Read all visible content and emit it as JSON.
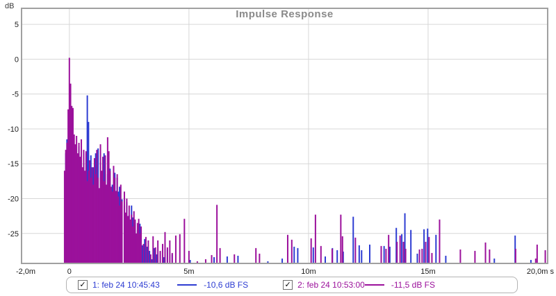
{
  "chart_data": {
    "type": "line",
    "subtype": "impulse-response-spikes",
    "title": "Impulse Response",
    "ylabel": "dB",
    "xlabel": "",
    "x_unit": "s",
    "xlim": [
      -2,
      20
    ],
    "ylim": [
      -29.3,
      7.3
    ],
    "grid": true,
    "legend_position": "bottom",
    "title_color": "#8a8a8a",
    "grid_color": "#d7d7d7",
    "border_color": "#a0a0a0",
    "x_ticks": [
      {
        "t": -2,
        "label": "-2,0m"
      },
      {
        "t": 0,
        "label": "0"
      },
      {
        "t": 5,
        "label": "5m"
      },
      {
        "t": 10,
        "label": "10m"
      },
      {
        "t": 15,
        "label": "15m"
      },
      {
        "t": 20,
        "label": "20,0m s"
      }
    ],
    "y_ticks": [
      {
        "v": 5,
        "label": "5"
      },
      {
        "v": 0,
        "label": "0"
      },
      {
        "v": -5,
        "label": "-5"
      },
      {
        "v": -10,
        "label": "-10"
      },
      {
        "v": -15,
        "label": "-15"
      },
      {
        "v": -20,
        "label": "-20"
      },
      {
        "v": -25,
        "label": "-25"
      }
    ],
    "series": [
      {
        "label": "1: feb 24 10:45:43",
        "peak_label": "-10,6 dB FS",
        "color": "#2d3cd2",
        "checked": true,
        "check_glyph": "✓",
        "spikes": [
          [
            -0.15,
            -13.5
          ],
          [
            -0.1,
            -11.5
          ],
          [
            0,
            -10.8
          ],
          [
            0.05,
            -9.5
          ],
          [
            0.1,
            -12
          ],
          [
            0.2,
            -13
          ],
          [
            0.3,
            -14
          ],
          [
            0.4,
            -12.5
          ],
          [
            0.5,
            -14.5
          ],
          [
            0.6,
            -15
          ],
          [
            0.7,
            -13.5
          ],
          [
            0.75,
            -5.2
          ],
          [
            0.8,
            -9
          ],
          [
            0.9,
            -13.8
          ],
          [
            1,
            -15.5
          ],
          [
            1.1,
            -13.5
          ],
          [
            1.2,
            -12.8
          ],
          [
            1.3,
            -14.8
          ],
          [
            1.4,
            -15.4
          ],
          [
            1.45,
            -13.5
          ],
          [
            1.5,
            -16
          ],
          [
            1.6,
            -16.5
          ],
          [
            1.65,
            -15.6
          ],
          [
            1.7,
            -15.7
          ],
          [
            1.8,
            -18
          ],
          [
            1.9,
            -16.3
          ],
          [
            2,
            -17
          ],
          [
            2.05,
            -19
          ],
          [
            2.1,
            -18.3
          ],
          [
            2.2,
            -20.1
          ],
          [
            2.3,
            -21
          ],
          [
            2.4,
            -20.5
          ],
          [
            2.5,
            -22.4
          ],
          [
            2.6,
            -21
          ],
          [
            2.65,
            -22.7
          ],
          [
            2.75,
            -23.2
          ],
          [
            2.85,
            -24.5
          ],
          [
            2.95,
            -23.6
          ],
          [
            3.05,
            -26.7
          ],
          [
            3.15,
            -25.8
          ],
          [
            3.25,
            -26.9
          ],
          [
            3.35,
            -27.5
          ],
          [
            3.45,
            -28.7
          ],
          [
            3.55,
            -27.1
          ],
          [
            3.65,
            -28
          ],
          [
            3.8,
            -27.6
          ],
          [
            3.95,
            -28.4
          ],
          [
            4.1,
            -27.3
          ],
          [
            4.3,
            -28
          ],
          [
            5.05,
            -28.8
          ],
          [
            6.05,
            -28.4
          ],
          [
            6.6,
            -28.3
          ],
          [
            7.05,
            -28.2
          ],
          [
            8.3,
            -29
          ],
          [
            8.9,
            -28.6
          ],
          [
            9.4,
            -26.9
          ],
          [
            9.55,
            -27.1
          ],
          [
            10.2,
            -27
          ],
          [
            10.7,
            -28.3
          ],
          [
            11,
            -27.1
          ],
          [
            11.2,
            -27.4
          ],
          [
            11.45,
            -27.6
          ],
          [
            11.87,
            -22.6
          ],
          [
            12.12,
            -26.7
          ],
          [
            12.22,
            -27.4
          ],
          [
            12.56,
            -26.6
          ],
          [
            13.16,
            -26.8
          ],
          [
            13.4,
            -26.9
          ],
          [
            13.67,
            -24.2
          ],
          [
            13.9,
            -25.1
          ],
          [
            14.03,
            -22.1
          ],
          [
            14.28,
            -24.5
          ],
          [
            14.55,
            -27.9
          ],
          [
            14.83,
            -24.4
          ],
          [
            14.98,
            -24.3
          ],
          [
            15.33,
            -25.2
          ],
          [
            15.74,
            -28.2
          ],
          [
            17.77,
            -28.6
          ],
          [
            18.64,
            -25.3
          ],
          [
            19.3,
            -28.8
          ]
        ]
      },
      {
        "label": "2: feb 24 10:53:00",
        "peak_label": "-11,5 dB FS",
        "color": "#9b109b",
        "checked": true,
        "check_glyph": "✓",
        "spikes": [
          [
            -0.2,
            -16
          ],
          [
            -0.15,
            -13
          ],
          [
            -0.1,
            -12
          ],
          [
            -0.05,
            -7.2
          ],
          [
            0,
            0.2
          ],
          [
            0.05,
            -3.5
          ],
          [
            0.1,
            -6.7
          ],
          [
            0.15,
            -7
          ],
          [
            0.2,
            -10.8
          ],
          [
            0.25,
            -12.2
          ],
          [
            0.3,
            -11
          ],
          [
            0.35,
            -13.5
          ],
          [
            0.4,
            -12
          ],
          [
            0.45,
            -14
          ],
          [
            0.5,
            -11.5
          ],
          [
            0.55,
            -15.5
          ],
          [
            0.6,
            -13
          ],
          [
            0.65,
            -16
          ],
          [
            0.7,
            -13.2
          ],
          [
            0.75,
            -17.5
          ],
          [
            0.8,
            -16
          ],
          [
            0.85,
            -14.5
          ],
          [
            0.9,
            -17
          ],
          [
            0.95,
            -15.5
          ],
          [
            1,
            -18
          ],
          [
            1.05,
            -14.2
          ],
          [
            1.1,
            -16.5
          ],
          [
            1.15,
            -13
          ],
          [
            1.2,
            -17
          ],
          [
            1.25,
            -18.5
          ],
          [
            1.3,
            -12.2
          ],
          [
            1.35,
            -16
          ],
          [
            1.4,
            -14
          ],
          [
            1.45,
            -17.5
          ],
          [
            1.5,
            -13.8
          ],
          [
            1.55,
            -18
          ],
          [
            1.6,
            -11.2
          ],
          [
            1.65,
            -13.2
          ],
          [
            1.7,
            -16
          ],
          [
            1.75,
            -18.3
          ],
          [
            1.8,
            -19
          ],
          [
            1.85,
            -15.3
          ],
          [
            1.9,
            -17
          ],
          [
            1.95,
            -18.9
          ],
          [
            2,
            -16.5
          ],
          [
            2.05,
            -19.7
          ],
          [
            2.1,
            -21
          ],
          [
            2.15,
            -18
          ],
          [
            2.2,
            -20.4
          ],
          [
            2.3,
            -19
          ],
          [
            2.35,
            -22
          ],
          [
            2.4,
            -20
          ],
          [
            2.45,
            -22.5
          ],
          [
            2.5,
            -21
          ],
          [
            2.55,
            -23
          ],
          [
            2.6,
            -22.3
          ],
          [
            2.65,
            -24
          ],
          [
            2.7,
            -21.8
          ],
          [
            2.75,
            -23
          ],
          [
            2.8,
            -25
          ],
          [
            2.85,
            -23.5
          ],
          [
            2.9,
            -22.9
          ],
          [
            2.95,
            -25
          ],
          [
            3,
            -24
          ],
          [
            3.1,
            -26.5
          ],
          [
            3.2,
            -25.5
          ],
          [
            3.3,
            -26
          ],
          [
            3.4,
            -28
          ],
          [
            3.5,
            -25.4
          ],
          [
            3.6,
            -27
          ],
          [
            3.7,
            -26
          ],
          [
            3.8,
            -27.5
          ],
          [
            3.9,
            -26.5
          ],
          [
            4,
            -24.8
          ],
          [
            4.1,
            -27
          ],
          [
            4.2,
            -26
          ],
          [
            4.3,
            -27.8
          ],
          [
            4.45,
            -25.3
          ],
          [
            4.62,
            -25.1
          ],
          [
            4.81,
            -22.9
          ],
          [
            5,
            -27.5
          ],
          [
            5.35,
            -29
          ],
          [
            5.7,
            -28.7
          ],
          [
            5.95,
            -28.1
          ],
          [
            6.17,
            -20.9
          ],
          [
            6.3,
            -27.1
          ],
          [
            6.9,
            -28
          ],
          [
            7.8,
            -27.1
          ],
          [
            7.95,
            -27.9
          ],
          [
            9.13,
            -25.2
          ],
          [
            9.3,
            -25.9
          ],
          [
            10.11,
            -25.7
          ],
          [
            10.29,
            -22.3
          ],
          [
            10.52,
            -26.8
          ],
          [
            10.99,
            -27.2
          ],
          [
            11.35,
            -22.3
          ],
          [
            11.42,
            -25.4
          ],
          [
            11.96,
            -25.6
          ],
          [
            13.04,
            -26.8
          ],
          [
            13.24,
            -27.2
          ],
          [
            13.35,
            -25.2
          ],
          [
            13.7,
            -26.2
          ],
          [
            13.83,
            -25.3
          ],
          [
            13.97,
            -26.2
          ],
          [
            14.06,
            -27.2
          ],
          [
            14.64,
            -27.3
          ],
          [
            14.75,
            -27.2
          ],
          [
            14.9,
            -26.2
          ],
          [
            15.04,
            -25.5
          ],
          [
            15.16,
            -27.8
          ],
          [
            15.48,
            -23
          ],
          [
            16.35,
            -27.3
          ],
          [
            16.96,
            -27.5
          ],
          [
            17.4,
            -26.3
          ],
          [
            17.57,
            -27.3
          ],
          [
            18.66,
            -27.2
          ],
          [
            19.5,
            -28.6
          ],
          [
            19.56,
            -26.6
          ],
          [
            19.9,
            -27.4
          ]
        ]
      }
    ]
  }
}
